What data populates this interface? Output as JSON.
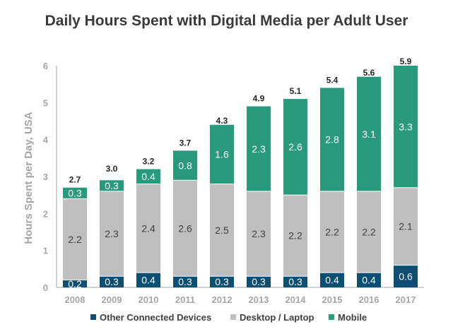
{
  "chart_data": {
    "type": "bar",
    "stacked": true,
    "title": "Daily Hours Spent with Digital Media per Adult User",
    "ylabel": "Hours Spent per Day, USA",
    "xlabel": "",
    "ylim": [
      0,
      6
    ],
    "yticks": [
      "0",
      "1",
      "2",
      "3",
      "4",
      "5",
      "6"
    ],
    "grid": false,
    "legend_position": "bottom",
    "categories": [
      "2008",
      "2009",
      "2010",
      "2011",
      "2012",
      "2013",
      "2014",
      "2015",
      "2016",
      "2017"
    ],
    "series": [
      {
        "name": "Other Connected Devices",
        "color": "#0d4f73",
        "values": [
          0.2,
          0.3,
          0.4,
          0.3,
          0.3,
          0.3,
          0.3,
          0.4,
          0.4,
          0.6
        ],
        "labels": [
          "0.2",
          "0.3",
          "0.4",
          "0.3",
          "0.3",
          "0.3",
          "0.3",
          "0.4",
          "0.4",
          "0.6"
        ],
        "label_color": "#ffffff"
      },
      {
        "name": "Desktop / Laptop",
        "color": "#bfbfbf",
        "values": [
          2.2,
          2.3,
          2.4,
          2.6,
          2.5,
          2.3,
          2.2,
          2.2,
          2.2,
          2.1
        ],
        "labels": [
          "2.2",
          "2.3",
          "2.4",
          "2.6",
          "2.5",
          "2.3",
          "2.2",
          "2.2",
          "2.2",
          "2.1"
        ],
        "label_color": "#404040"
      },
      {
        "name": "Mobile",
        "color": "#2a9a7c",
        "values": [
          0.3,
          0.3,
          0.4,
          0.8,
          1.6,
          2.3,
          2.6,
          2.8,
          3.1,
          3.3
        ],
        "labels": [
          "0.3",
          "0.3",
          "0.4",
          "0.8",
          "1.6",
          "2.3",
          "2.6",
          "2.8",
          "3.1",
          "3.3"
        ],
        "label_color": "#ffffff"
      }
    ],
    "totals": [
      2.7,
      3.0,
      3.2,
      3.7,
      4.3,
      4.9,
      5.1,
      5.4,
      5.6,
      5.9
    ],
    "total_labels": [
      "2.7",
      "3.0",
      "3.2",
      "3.7",
      "4.3",
      "4.9",
      "5.1",
      "5.4",
      "5.6",
      "5.9"
    ],
    "axis_color": "#a6a6a6",
    "tick_label_color": "#a6a6a6",
    "legend_text_color": "#404040"
  }
}
